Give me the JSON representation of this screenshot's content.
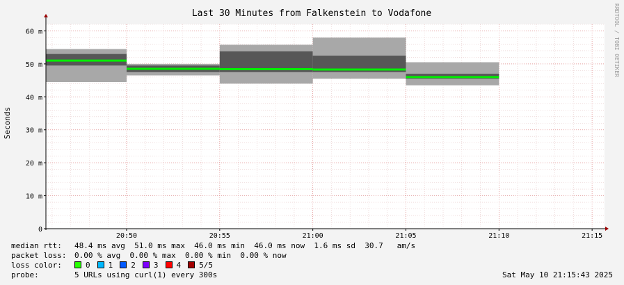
{
  "chart_data": {
    "type": "area",
    "title": "Last 30 Minutes from Falkenstein to Vodafone",
    "ylabel": "Seconds",
    "watermark": "RRDTOOL / TOBI OETIKER",
    "y_unit_suffix": "m",
    "ylim": [
      0,
      62
    ],
    "y_ticks": [
      {
        "value": 0,
        "label": "0"
      },
      {
        "value": 10,
        "label": "10 m"
      },
      {
        "value": 20,
        "label": "20 m"
      },
      {
        "value": 30,
        "label": "30 m"
      },
      {
        "value": 40,
        "label": "40 m"
      },
      {
        "value": 50,
        "label": "50 m"
      },
      {
        "value": 60,
        "label": "60 m"
      }
    ],
    "xlim": [
      "20:45:40",
      "21:15:40"
    ],
    "x_ticks": [
      "20:50",
      "20:55",
      "21:00",
      "21:05",
      "21:10",
      "21:15"
    ],
    "grid": true,
    "series": [
      {
        "name": "median rtt",
        "color": "#00ee00",
        "segments": [
          {
            "start": "20:45:40",
            "end": "20:50:00",
            "min": 44.5,
            "q1": 49.5,
            "median": 51.0,
            "q3": 53.0,
            "max": 54.5
          },
          {
            "start": "20:50:00",
            "end": "20:55:00",
            "min": 46.5,
            "q1": 47.5,
            "median": 48.5,
            "q3": 49.5,
            "max": 50.0
          },
          {
            "start": "20:55:00",
            "end": "21:00:00",
            "min": 44.0,
            "q1": 47.5,
            "median": 48.4,
            "q3": 53.8,
            "max": 55.8
          },
          {
            "start": "21:00:00",
            "end": "21:05:00",
            "min": 45.5,
            "q1": 47.5,
            "median": 48.3,
            "q3": 52.5,
            "max": 58.0
          },
          {
            "start": "21:05:00",
            "end": "21:10:00",
            "min": 43.5,
            "q1": 45.5,
            "median": 46.0,
            "q3": 47.0,
            "max": 50.5
          }
        ]
      }
    ]
  },
  "legend": {
    "rtt": {
      "label": "median rtt:",
      "text": "48.4 ms avg  51.0 ms max  46.0 ms min  46.0 ms now  1.6 ms sd  30.7   am/s"
    },
    "loss": {
      "label": "packet loss:",
      "text": "0.00 % avg  0.00 % max  0.00 % min  0.00 % now"
    },
    "color": {
      "label": "loss color:",
      "items": [
        {
          "label": "0",
          "color": "#26ff00"
        },
        {
          "label": "1",
          "color": "#00b8ff"
        },
        {
          "label": "2",
          "color": "#0059ff"
        },
        {
          "label": "3",
          "color": "#7e00ff"
        },
        {
          "label": "4",
          "color": "#ff0000"
        },
        {
          "label": "5/5",
          "color": "#a10000"
        }
      ]
    },
    "probe": {
      "label": "probe:",
      "text": "5 URLs using curl(1) every 300s"
    }
  },
  "timestamp": "Sat May 10 21:15:43 2025"
}
